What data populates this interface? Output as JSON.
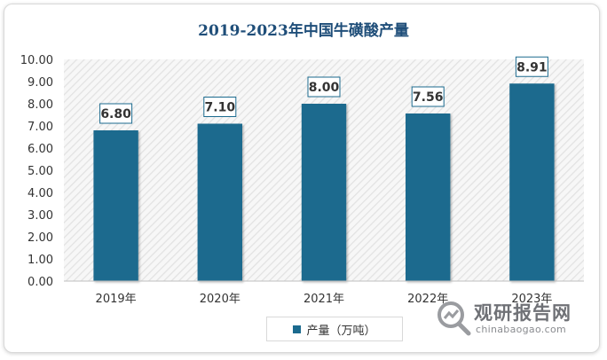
{
  "chart_data": {
    "type": "bar",
    "title": "2019-2023年中国牛磺酸产量",
    "categories": [
      "2019年",
      "2020年",
      "2021年",
      "2022年",
      "2023年"
    ],
    "series": [
      {
        "name": "产量（万吨）",
        "values": [
          6.8,
          7.1,
          8.0,
          7.56,
          8.91
        ]
      }
    ],
    "data_labels": [
      "6.80",
      "7.10",
      "8.00",
      "7.56",
      "8.91"
    ],
    "yticks": [
      "0.00",
      "1.00",
      "2.00",
      "3.00",
      "4.00",
      "5.00",
      "6.00",
      "7.00",
      "8.00",
      "9.00",
      "10.00"
    ],
    "ylim": [
      0,
      10
    ],
    "legend_position": "bottom",
    "grid": false,
    "colors": {
      "bar": "#1b6a8e",
      "title": "#1f4e79",
      "label_border": "#1b6a8e"
    }
  },
  "watermark": {
    "name": "观研报告网",
    "url": "chinabaogao.com",
    "icon": "magnifier-logo-icon"
  }
}
